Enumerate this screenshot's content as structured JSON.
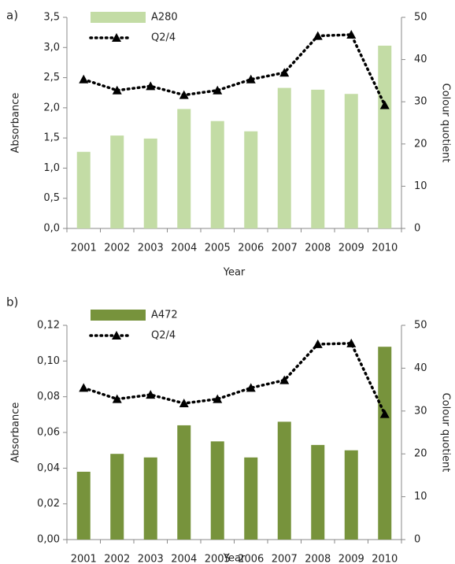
{
  "chart_data": [
    {
      "type": "bar",
      "panel": "a)",
      "x_label": "Year",
      "y_label": "Absorbance",
      "y2_label": "Colour quotient",
      "categories": [
        "2001",
        "2002",
        "2003",
        "2004",
        "2005",
        "2006",
        "2007",
        "2008",
        "2009",
        "2010"
      ],
      "series": [
        {
          "name": "A280",
          "color": "#c3dca5",
          "values": [
            1.27,
            1.54,
            1.49,
            1.98,
            1.78,
            1.61,
            2.33,
            2.3,
            2.23,
            3.03
          ]
        },
        {
          "name": "Q2/4",
          "color": "#000000",
          "type": "line",
          "axis": "y2",
          "values": [
            35.3,
            32.7,
            33.7,
            31.6,
            32.7,
            35.3,
            36.9,
            45.6,
            45.9,
            29.2
          ]
        }
      ],
      "ylim": [
        0,
        3.5
      ],
      "yticks": [
        {
          "value": 0,
          "label": "0,0"
        },
        {
          "value": 0.5,
          "label": "0,5"
        },
        {
          "value": 1,
          "label": "1,0"
        },
        {
          "value": 1.5,
          "label": "1,5"
        },
        {
          "value": 2,
          "label": "2,0"
        },
        {
          "value": 2.5,
          "label": "2,5"
        },
        {
          "value": 3,
          "label": "3,0"
        },
        {
          "value": 3.5,
          "label": "3,5"
        }
      ],
      "y2lim": [
        0,
        50
      ],
      "y2ticks": [
        0,
        10,
        20,
        30,
        40,
        50
      ]
    },
    {
      "type": "bar",
      "panel": "b)",
      "x_label": "Year",
      "y_label": "Absorbance",
      "y2_label": "Colour quotient",
      "categories": [
        "2001",
        "2002",
        "2003",
        "2004",
        "2005",
        "2006",
        "2007",
        "2008",
        "2009",
        "2010"
      ],
      "series": [
        {
          "name": "A472",
          "color": "#77933c",
          "values": [
            0.038,
            0.048,
            0.046,
            0.064,
            0.055,
            0.046,
            0.066,
            0.053,
            0.05,
            0.108
          ]
        },
        {
          "name": "Q2/4",
          "color": "#000000",
          "type": "line",
          "axis": "y2",
          "values": [
            35.4,
            32.8,
            33.8,
            31.8,
            32.8,
            35.4,
            37.2,
            45.6,
            45.8,
            29.3
          ]
        }
      ],
      "ylim": [
        0,
        0.12
      ],
      "yticks": [
        {
          "value": 0,
          "label": "0,00"
        },
        {
          "value": 0.02,
          "label": "0,02"
        },
        {
          "value": 0.04,
          "label": "0,04"
        },
        {
          "value": 0.06,
          "label": "0,06"
        },
        {
          "value": 0.08,
          "label": "0,08"
        },
        {
          "value": 0.1,
          "label": "0,10"
        },
        {
          "value": 0.12,
          "label": "0,12"
        }
      ],
      "y2lim": [
        0,
        50
      ],
      "y2ticks": [
        0,
        10,
        20,
        30,
        40,
        50
      ]
    }
  ]
}
